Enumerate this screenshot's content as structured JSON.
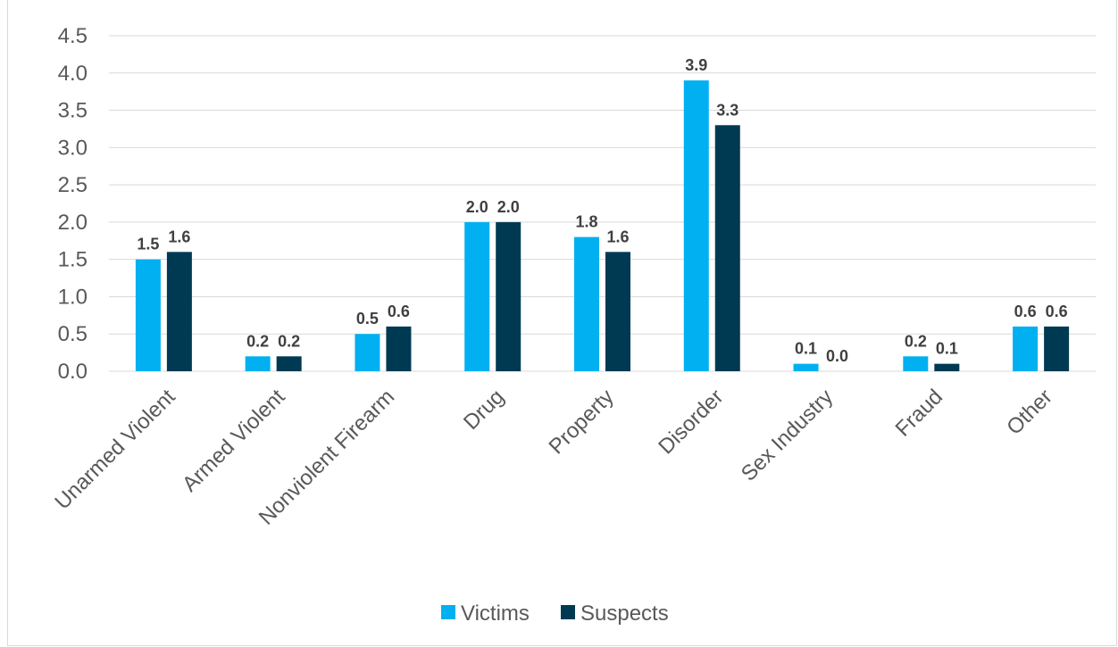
{
  "chart_data": {
    "type": "bar",
    "title": "",
    "xlabel": "",
    "ylabel": "",
    "ylim": [
      0,
      4.5
    ],
    "yticks": [
      "0.0",
      "0.5",
      "1.0",
      "1.5",
      "2.0",
      "2.5",
      "3.0",
      "3.5",
      "4.0",
      "4.5"
    ],
    "grid": true,
    "legend_position": "bottom",
    "categories": [
      "Unarmed Violent",
      "Armed Violent",
      "Nonviolent Firearm",
      "Drug",
      "Property",
      "Disorder",
      "Sex Industry",
      "Fraud",
      "Other"
    ],
    "series": [
      {
        "name": "Victims",
        "color": "#00b0f0",
        "values": [
          1.5,
          0.2,
          0.5,
          2.0,
          1.8,
          3.9,
          0.1,
          0.2,
          0.6
        ],
        "labels": [
          "1.5",
          "0.2",
          "0.5",
          "2.0",
          "1.8",
          "3.9",
          "0.1",
          "0.2",
          "0.6"
        ]
      },
      {
        "name": "Suspects",
        "color": "#003a52",
        "values": [
          1.6,
          0.2,
          0.6,
          2.0,
          1.6,
          3.3,
          0.0,
          0.1,
          0.6
        ],
        "labels": [
          "1.6",
          "0.2",
          "0.6",
          "2.0",
          "1.6",
          "3.3",
          "0.0",
          "0.1",
          "0.6"
        ]
      }
    ]
  }
}
